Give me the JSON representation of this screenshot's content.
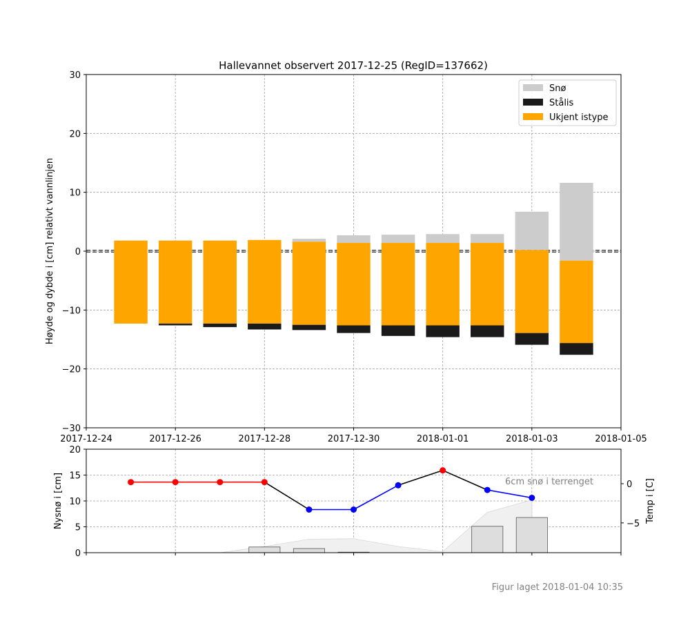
{
  "chart_data": [
    {
      "type": "bar",
      "title": "Hallevannet observert 2017-12-25 (RegID=137662)",
      "ylabel": "Høyde og dybde i [cm] relativt vannlinjen",
      "xlabel": "",
      "xlim": [
        "2017-12-24",
        "2018-01-05"
      ],
      "ylim": [
        -30,
        30
      ],
      "x_ticks": [
        "2017-12-24",
        "2017-12-26",
        "2017-12-28",
        "2017-12-30",
        "2018-01-01",
        "2018-01-03",
        "2018-01-05"
      ],
      "y_ticks": [
        "−30",
        "−20",
        "−10",
        "0",
        "10",
        "20",
        "30"
      ],
      "grid": true,
      "legend_position": "top-right",
      "water_line_value": 0,
      "dates": [
        "2017-12-25",
        "2017-12-26",
        "2017-12-27",
        "2017-12-28",
        "2017-12-29",
        "2017-12-30",
        "2017-12-31",
        "2018-01-01",
        "2018-01-02",
        "2018-01-03",
        "2018-01-04"
      ],
      "series": [
        {
          "name": "Snø",
          "color": "#cccccc",
          "bottom": [
            1.8,
            1.8,
            1.8,
            1.9,
            1.6,
            1.4,
            1.4,
            1.4,
            1.4,
            0.2,
            -1.6
          ],
          "top": [
            1.8,
            1.8,
            1.8,
            1.9,
            2.1,
            2.7,
            2.8,
            2.9,
            2.9,
            6.7,
            11.6
          ]
        },
        {
          "name": "Stålis",
          "color": "#1a1a1a",
          "bottom": [
            -12.3,
            -12.6,
            -12.9,
            -13.3,
            -13.4,
            -13.9,
            -14.4,
            -14.6,
            -14.6,
            -15.9,
            -17.6
          ],
          "top": [
            -12.3,
            -12.3,
            -12.3,
            -12.3,
            -12.5,
            -12.6,
            -12.6,
            -12.6,
            -12.6,
            -13.9,
            -15.6
          ]
        },
        {
          "name": "Ukjent istype",
          "color": "#ffa500",
          "bottom": [
            -12.3,
            -12.3,
            -12.3,
            -12.3,
            -12.5,
            -12.6,
            -12.6,
            -12.6,
            -12.6,
            -13.9,
            -15.6
          ],
          "top": [
            1.8,
            1.8,
            1.8,
            1.9,
            1.6,
            1.4,
            1.4,
            1.4,
            1.4,
            0.2,
            -1.6
          ]
        }
      ]
    },
    {
      "type": "bar",
      "ylabel": "Nysnø i [cm]",
      "ylim": [
        0,
        20
      ],
      "y_ticks": [
        "0",
        "5",
        "10",
        "15",
        "20"
      ],
      "y2label": "Temp i [C]",
      "y2lim": [
        -8.8,
        4.4
      ],
      "y2_ticks": [
        "−5",
        "0"
      ],
      "grid": true,
      "annotation": "6cm snø i terrenget",
      "new_snow": {
        "name": "Nysnø",
        "color": "#dddddd",
        "dates": [
          "2017-12-28",
          "2017-12-29",
          "2017-12-30",
          "2018-01-02",
          "2018-01-03"
        ],
        "values": [
          1.1,
          0.8,
          0.1,
          5.1,
          6.8
        ]
      },
      "snow_depth_area": {
        "color": "#f0f0f0",
        "dates": [
          "2017-12-27",
          "2017-12-28",
          "2017-12-29",
          "2017-12-30",
          "2017-12-31",
          "2018-01-01",
          "2018-01-02",
          "2018-01-03"
        ],
        "values": [
          0,
          1.2,
          2.6,
          2.7,
          1.2,
          0.2,
          7.8,
          10.2
        ]
      },
      "temperature": {
        "dates": [
          "2017-12-25",
          "2017-12-26",
          "2017-12-27",
          "2017-12-28",
          "2017-12-29",
          "2017-12-30",
          "2017-12-31",
          "2018-01-01",
          "2018-01-02",
          "2018-01-03"
        ],
        "values": [
          0.2,
          0.2,
          0.2,
          0.2,
          -3.3,
          -3.3,
          -0.2,
          1.7,
          -0.8,
          -1.8
        ],
        "warm_color": "#ff0000",
        "cold_color": "#0000ff",
        "transition_color": "#000000"
      }
    }
  ],
  "footer": "Figur laget 2018-01-04 10:35"
}
